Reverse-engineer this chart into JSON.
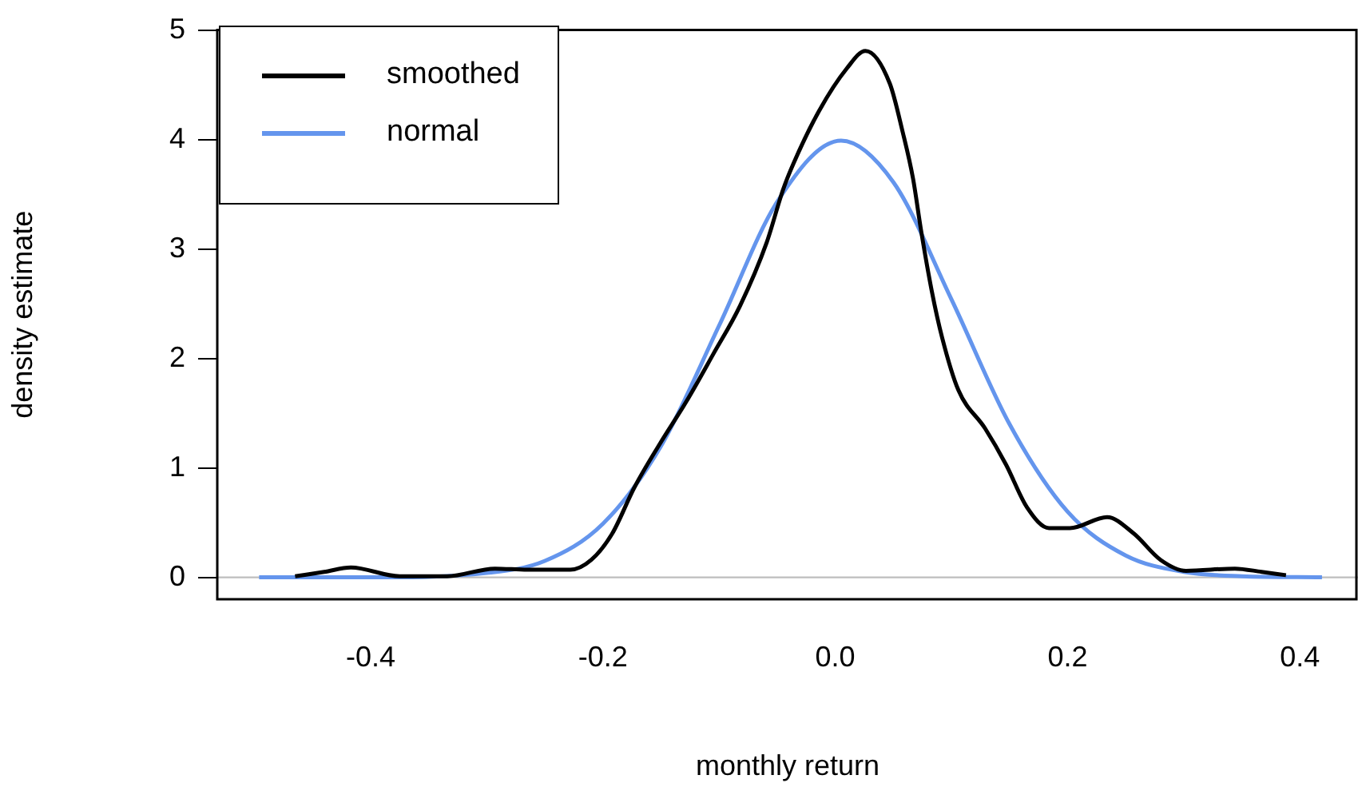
{
  "chart_data": {
    "type": "line",
    "xlabel": "monthly return",
    "ylabel": "density estimate",
    "xlim": [
      -0.532,
      0.45
    ],
    "ylim": [
      -0.2,
      5
    ],
    "xticks": [
      -0.4,
      -0.2,
      {
        "value": 0,
        "label": "0.0"
      },
      0.2,
      0.4
    ],
    "yticks": [
      0,
      1,
      2,
      3,
      4,
      5
    ],
    "grid": false,
    "legend": "top left",
    "marker": "none",
    "line_style": "solid",
    "ref_lines": [
      {
        "axis": "y",
        "value": 0,
        "color": "#bebebe"
      }
    ],
    "series": [
      {
        "name": "smoothed",
        "color": "#000000",
        "x": [
          -0.465,
          -0.44,
          -0.417,
          -0.375,
          -0.334,
          -0.293,
          -0.265,
          -0.228,
          -0.21,
          -0.192,
          -0.173,
          -0.151,
          -0.128,
          -0.105,
          -0.082,
          -0.059,
          -0.045,
          -0.036,
          -0.014,
          0.01,
          0.026,
          0.047,
          0.058,
          0.067,
          0.074,
          0.083,
          0.092,
          0.106,
          0.129,
          0.147,
          0.165,
          0.184,
          0.202,
          0.234,
          0.257,
          0.28,
          0.302,
          0.344,
          0.367,
          0.388
        ],
        "values": [
          0.01,
          0.05,
          0.09,
          0.01,
          0.01,
          0.08,
          0.07,
          0.07,
          0.16,
          0.4,
          0.82,
          1.22,
          1.61,
          2.04,
          2.48,
          3.06,
          3.54,
          3.78,
          4.26,
          4.65,
          4.81,
          4.51,
          4.07,
          3.64,
          3.16,
          2.62,
          2.19,
          1.71,
          1.36,
          1.03,
          0.64,
          0.45,
          0.45,
          0.55,
          0.4,
          0.16,
          0.06,
          0.08,
          0.05,
          0.02
        ]
      },
      {
        "name": "normal",
        "color": "#6495ed",
        "x": [
          -0.496,
          -0.4,
          -0.3,
          -0.25,
          -0.2,
          -0.15,
          -0.1,
          -0.05,
          0.005,
          0.05,
          0.1,
          0.15,
          0.2,
          0.25,
          0.3,
          0.35,
          0.419
        ],
        "values": [
          0,
          0,
          0.04,
          0.15,
          0.49,
          1.2,
          2.3,
          3.43,
          3.99,
          3.61,
          2.54,
          1.4,
          0.6,
          0.2,
          0.05,
          0.01,
          0
        ]
      }
    ]
  }
}
